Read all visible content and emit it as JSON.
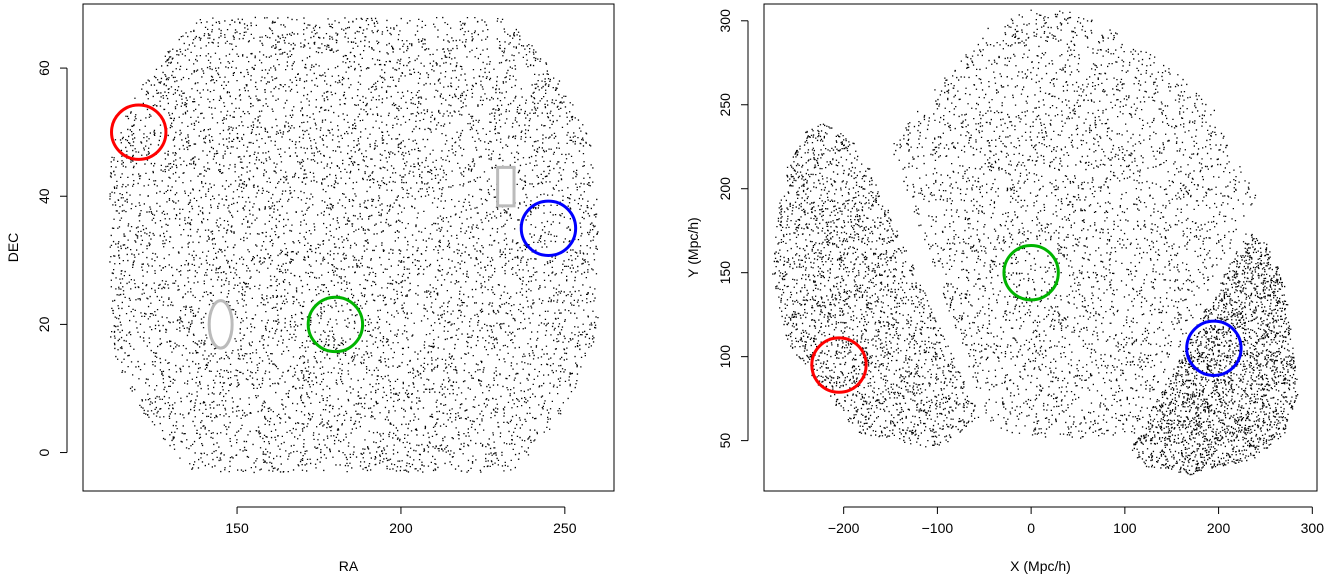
{
  "chart_data": [
    {
      "type": "scatter",
      "xlabel": "RA",
      "ylabel": "DEC",
      "xlim": [
        103,
        265
      ],
      "ylim": [
        -6,
        70
      ],
      "x_ticks": [
        150,
        200,
        250
      ],
      "y_ticks": [
        0,
        20,
        40,
        60
      ],
      "x_tick_labels": [
        "150",
        "200",
        "250"
      ],
      "y_tick_labels": [
        "0",
        "20",
        "40",
        "60"
      ],
      "grid": false,
      "point_color": "#000000",
      "footprint": {
        "ra_range": [
          111,
          260
        ],
        "dec_range": [
          -3,
          68
        ],
        "center": [
          185,
          32
        ],
        "description": "dense galaxy point cloud"
      },
      "masks": [
        {
          "shape": "ellipse",
          "center": [
            145,
            20
          ],
          "rx": 3.5,
          "ry": 3.7,
          "color": "#bbbbbb"
        },
        {
          "shape": "rect",
          "x0": 229.5,
          "x1": 234.5,
          "y0": 38.5,
          "y1": 44.5,
          "color": "#bbbbbb"
        }
      ],
      "circles": [
        {
          "center": [
            120,
            50
          ],
          "radius": 8.3,
          "color": "#ff0000"
        },
        {
          "center": [
            180,
            20
          ],
          "radius": 8.3,
          "color": "#00b400"
        },
        {
          "center": [
            245,
            35
          ],
          "radius": 8.3,
          "color": "#0000ff"
        }
      ]
    },
    {
      "type": "scatter",
      "xlabel": "X (Mpc/h)",
      "ylabel": "Y (Mpc/h)",
      "xlim": [
        -285,
        305
      ],
      "ylim": [
        20,
        310
      ],
      "x_ticks": [
        -200,
        -100,
        0,
        100,
        200,
        300
      ],
      "y_ticks": [
        50,
        100,
        150,
        200,
        250,
        300
      ],
      "x_tick_labels": [
        "−200",
        "−100",
        "0",
        "100",
        "200",
        "300"
      ],
      "y_tick_labels": [
        "50",
        "100",
        "150",
        "200",
        "250",
        "300"
      ],
      "grid": false,
      "point_color": "#000000",
      "wedges": [
        {
          "name": "left",
          "polygon": [
            [
              -278,
              150
            ],
            [
              -265,
              210
            ],
            [
              -240,
              235
            ],
            [
              -220,
              240
            ],
            [
              -183,
              225
            ],
            [
              -55,
              65
            ],
            [
              -100,
              45
            ],
            [
              -185,
              55
            ],
            [
              -230,
              85
            ],
            [
              -262,
              110
            ]
          ]
        },
        {
          "name": "center",
          "polygon": [
            [
              -125,
              245
            ],
            [
              -95,
              265
            ],
            [
              -50,
              295
            ],
            [
              0,
              308
            ],
            [
              50,
              305
            ],
            [
              100,
              290
            ],
            [
              150,
              272
            ],
            [
              195,
              247
            ],
            [
              215,
              222
            ],
            [
              240,
              195
            ],
            [
              110,
              55
            ],
            [
              40,
              50
            ],
            [
              -20,
              55
            ],
            [
              -45,
              60
            ],
            [
              -150,
              225
            ]
          ]
        },
        {
          "name": "right",
          "polygon": [
            [
              105,
              45
            ],
            [
              230,
              175
            ],
            [
              250,
              168
            ],
            [
              270,
              145
            ],
            [
              285,
              80
            ],
            [
              270,
              55
            ],
            [
              240,
              40
            ],
            [
              170,
              30
            ],
            [
              120,
              35
            ]
          ]
        }
      ],
      "circles": [
        {
          "center": [
            -205,
            95
          ],
          "radius": 29,
          "color": "#ff0000"
        },
        {
          "center": [
            0,
            150
          ],
          "radius": 29,
          "color": "#00b400"
        },
        {
          "center": [
            195,
            105
          ],
          "radius": 29,
          "color": "#0000ff"
        }
      ]
    }
  ]
}
